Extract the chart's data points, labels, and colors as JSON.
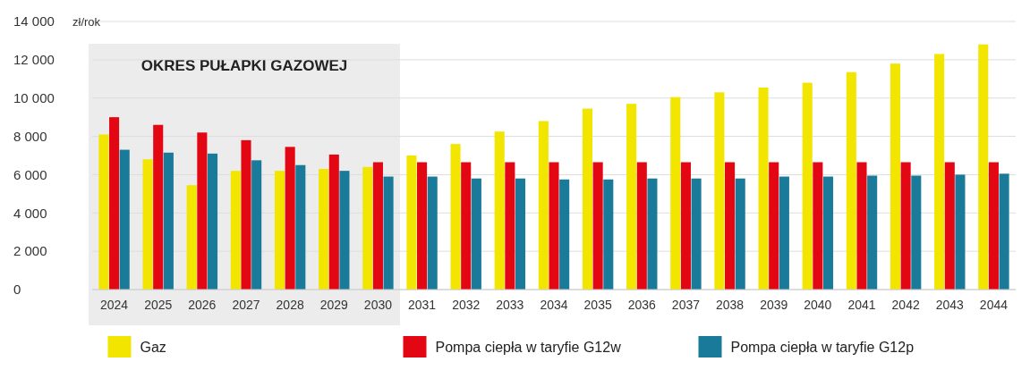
{
  "chart_data": {
    "type": "bar",
    "ylabel": "zł/rok",
    "categories": [
      "2024",
      "2025",
      "2026",
      "2027",
      "2028",
      "2029",
      "2030",
      "2031",
      "2032",
      "2033",
      "2034",
      "2035",
      "2036",
      "2037",
      "2038",
      "2039",
      "2040",
      "2041",
      "2042",
      "2043",
      "2044"
    ],
    "series": [
      {
        "name": "Gaz",
        "color": "#f2e600",
        "values": [
          8100,
          6800,
          5450,
          6200,
          6200,
          6300,
          6400,
          7000,
          7600,
          8250,
          8800,
          9450,
          9700,
          10050,
          10300,
          10550,
          10800,
          11350,
          11800,
          12300,
          12800
        ]
      },
      {
        "name": "Pompa ciepła w taryfie G12w",
        "color": "#e30613",
        "values": [
          9000,
          8600,
          8200,
          7800,
          7450,
          7050,
          6650,
          6650,
          6650,
          6650,
          6650,
          6650,
          6650,
          6650,
          6650,
          6650,
          6650,
          6650,
          6650,
          6650,
          6650
        ]
      },
      {
        "name": "Pompa ciepła w taryfie G12p",
        "color": "#1a7a9a",
        "values": [
          7300,
          7150,
          7100,
          6750,
          6500,
          6200,
          5900,
          5900,
          5800,
          5800,
          5750,
          5750,
          5800,
          5800,
          5800,
          5900,
          5900,
          5950,
          5950,
          6000,
          6050
        ]
      }
    ],
    "ylim": [
      0,
      14000
    ],
    "yticks": [
      {
        "value": 0,
        "label": "0"
      },
      {
        "value": 2000,
        "label": "2 000"
      },
      {
        "value": 4000,
        "label": "4 000"
      },
      {
        "value": 6000,
        "label": "6 000"
      },
      {
        "value": 8000,
        "label": "8 000"
      },
      {
        "value": 10000,
        "label": "10 000"
      },
      {
        "value": 12000,
        "label": "12 000"
      },
      {
        "value": 14000,
        "label": "14 000"
      }
    ],
    "bands": [
      {
        "axis": "x",
        "from": "2024",
        "to": "2030",
        "label": "OKRES PUŁAPKI GAZOWEJ",
        "color": "#ececec"
      }
    ],
    "grid": "y",
    "legend": "bottom"
  }
}
